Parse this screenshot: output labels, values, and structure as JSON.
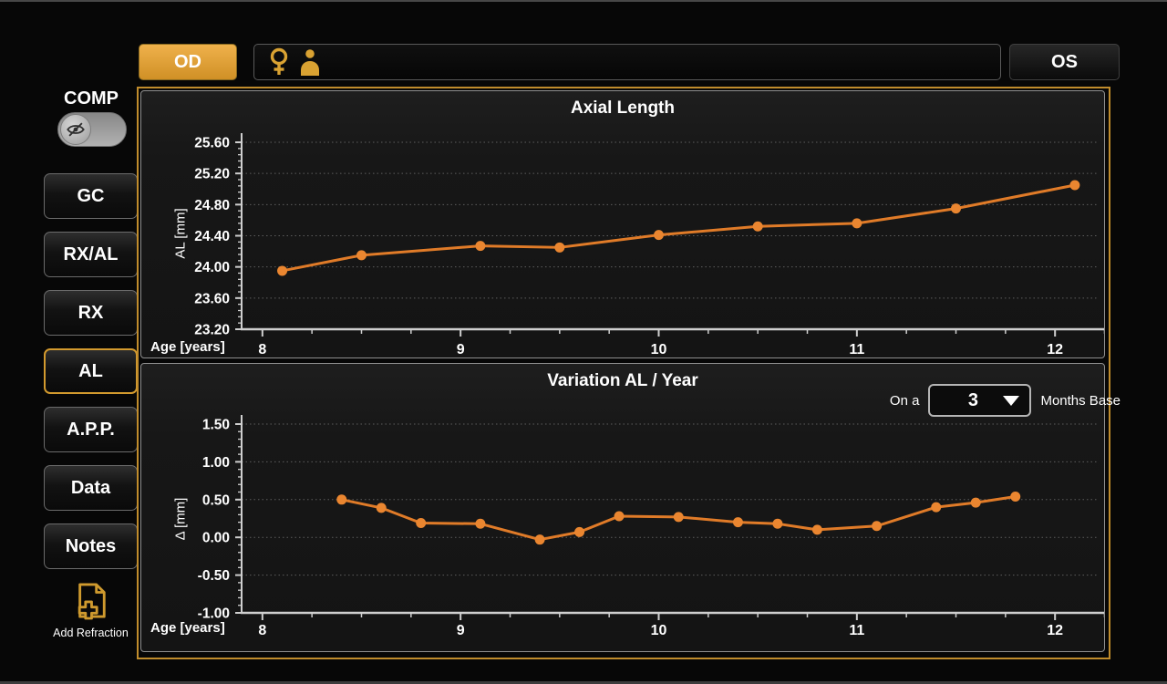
{
  "colors": {
    "accent_gold": "#dfa23b",
    "active_border_gold": "#d39a2e",
    "frame_border_gold": "#c08c2c",
    "line_orange": "#e07b28",
    "point_orange": "#ea8630"
  },
  "top_bar": {
    "od_button_label": "OD",
    "os_button_label": "OS",
    "patient_field": {
      "value": "",
      "icons": [
        "female-icon",
        "person-icon"
      ]
    }
  },
  "sidebar": {
    "comp_label": "COMP",
    "comp_toggle_state": "off",
    "comp_toggle_icon": "eye-off-icon",
    "buttons": [
      {
        "label": "GC",
        "active": false
      },
      {
        "label": "RX/AL",
        "active": false
      },
      {
        "label": "RX",
        "active": false
      },
      {
        "label": "AL",
        "active": true
      },
      {
        "label": "A.P.P.",
        "active": false
      },
      {
        "label": "Data",
        "active": false
      },
      {
        "label": "Notes",
        "active": false
      }
    ],
    "add_refraction": {
      "label": "Add Refraction",
      "icon": "add-document-icon"
    }
  },
  "chart_data": [
    {
      "type": "line",
      "title": "Axial Length",
      "xlabel": "Age [years]",
      "ylabel": "AL [mm]",
      "x": [
        8.1,
        8.5,
        9.1,
        9.5,
        10.0,
        10.5,
        11.0,
        11.5,
        12.1
      ],
      "y": [
        23.95,
        24.15,
        24.27,
        24.25,
        24.41,
        24.52,
        24.56,
        24.75,
        25.05
      ],
      "xlim": [
        7.895,
        12.22
      ],
      "ylim": [
        23.2,
        25.6
      ],
      "x_ticks": [
        8,
        9,
        10,
        11,
        12
      ],
      "x_minor_step": 0.25,
      "y_ticks": [
        23.2,
        23.6,
        24.0,
        24.4,
        24.8,
        25.2,
        25.6
      ],
      "y_minor_step": 0.08,
      "y_tick_decimals": 2,
      "grid": "horizontal-dotted",
      "legend": "none",
      "line_color": "#e07b28",
      "point_color": "#ea8630"
    },
    {
      "type": "line",
      "title": "Variation AL / Year",
      "xlabel": "Age [years]",
      "ylabel": "Δ [mm]",
      "x": [
        8.4,
        8.6,
        8.8,
        9.1,
        9.4,
        9.6,
        9.8,
        10.1,
        10.4,
        10.6,
        10.8,
        11.1,
        11.4,
        11.6,
        11.8
      ],
      "y": [
        0.5,
        0.39,
        0.19,
        0.18,
        -0.03,
        0.07,
        0.28,
        0.27,
        0.2,
        0.18,
        0.1,
        0.15,
        0.4,
        0.46,
        0.54
      ],
      "xlim": [
        7.895,
        12.22
      ],
      "ylim": [
        -1.0,
        1.5
      ],
      "x_ticks": [
        8,
        9,
        10,
        11,
        12
      ],
      "x_minor_step": 0.25,
      "y_ticks": [
        -1.0,
        -0.5,
        0.0,
        0.5,
        1.0,
        1.5
      ],
      "y_minor_step": 0.1,
      "y_tick_decimals": 2,
      "grid": "horizontal-dotted",
      "legend": "none",
      "line_color": "#e07b28",
      "point_color": "#ea8630",
      "controls": {
        "prefix_label": "On a",
        "selected_value": "3",
        "suffix_label": "Months Base"
      }
    }
  ]
}
